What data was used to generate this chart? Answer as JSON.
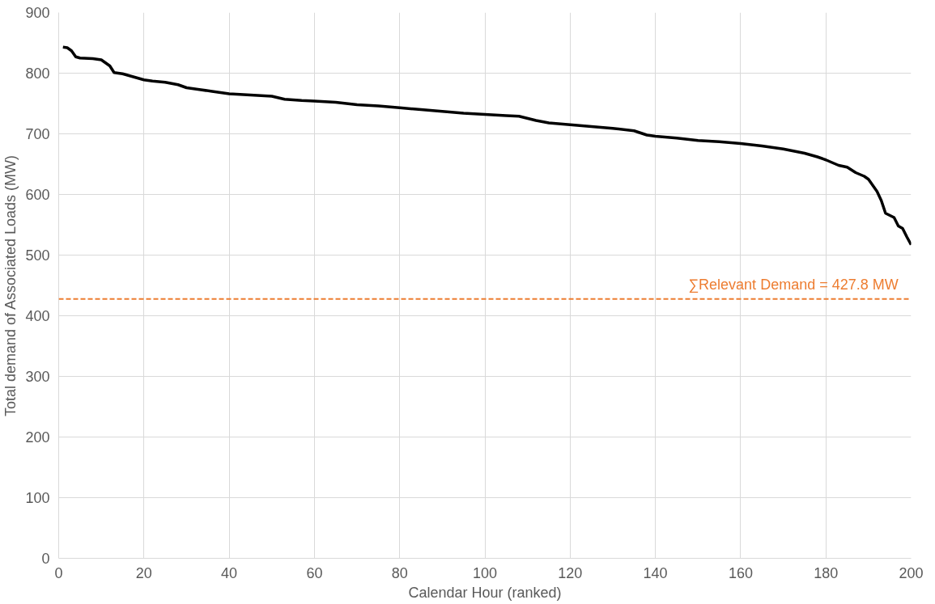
{
  "chart_data": {
    "type": "line",
    "xlabel": "Calendar Hour (ranked)",
    "ylabel": "Total demand of Associated Loads (MW)",
    "x": [
      1,
      2,
      3,
      4,
      5,
      8,
      10,
      12,
      13,
      15,
      18,
      20,
      22,
      25,
      28,
      30,
      33,
      36,
      40,
      45,
      50,
      53,
      57,
      60,
      65,
      70,
      75,
      80,
      85,
      90,
      95,
      100,
      105,
      108,
      112,
      115,
      120,
      125,
      130,
      135,
      138,
      140,
      145,
      150,
      155,
      160,
      165,
      170,
      175,
      178,
      180,
      183,
      185,
      187,
      189,
      190,
      191,
      192,
      193,
      194,
      196,
      197,
      198,
      199,
      200
    ],
    "series": [
      {
        "color": "#000000",
        "values": [
          843,
          842,
          837,
          827,
          825,
          824,
          822,
          812,
          801,
          799,
          793,
          789,
          787,
          785,
          781,
          776,
          773,
          770,
          766,
          764,
          762,
          757,
          755,
          754,
          752,
          748,
          746,
          743,
          740,
          737,
          734,
          732,
          730,
          729,
          722,
          718,
          715,
          712,
          709,
          705,
          698,
          696,
          693,
          689,
          687,
          684,
          680,
          675,
          668,
          662,
          657,
          648,
          645,
          636,
          630,
          625,
          615,
          605,
          590,
          569,
          562,
          548,
          544,
          530,
          517
        ]
      }
    ],
    "xlim": [
      0,
      200
    ],
    "xticks": [
      0,
      20,
      40,
      60,
      80,
      100,
      120,
      140,
      160,
      180,
      200
    ],
    "ylim": [
      0,
      900
    ],
    "yticks": [
      0,
      100,
      200,
      300,
      400,
      500,
      600,
      700,
      800,
      900
    ],
    "grid": true,
    "marker": "none",
    "line_style": "solid",
    "ref_lines": [
      {
        "axis": "y",
        "value": 427.8,
        "label": "∑Relevant Demand = 427.8 MW",
        "color": "#ed7d31",
        "line_style": "dashed"
      }
    ]
  }
}
